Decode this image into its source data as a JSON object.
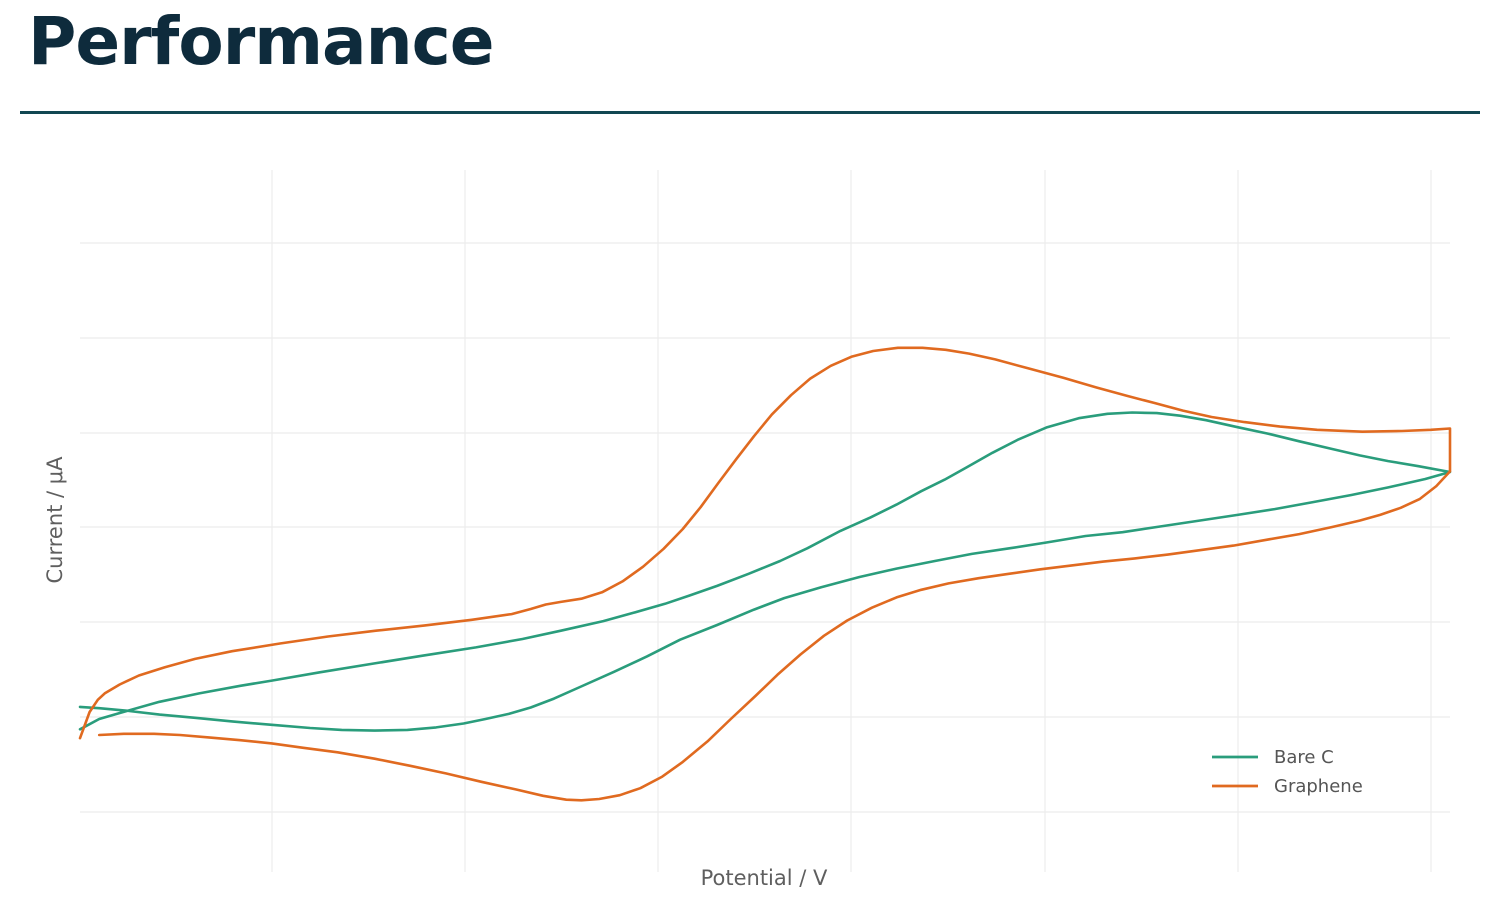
{
  "page": {
    "title": "Performance"
  },
  "chart_data": {
    "type": "line",
    "title": "",
    "xlabel": "Potential / V",
    "ylabel": "Current / μA",
    "xlim": [
      0,
      100
    ],
    "ylim": [
      0,
      100
    ],
    "grid": true,
    "tick_labels_shown": false,
    "legend_position": "bottom-right",
    "series": [
      {
        "name": "Bare C",
        "color": "#2a9d7c",
        "points": [
          [
            0,
            17.3
          ],
          [
            1.4,
            18.9
          ],
          [
            3.0,
            19.9
          ],
          [
            5.8,
            21.6
          ],
          [
            8.7,
            22.9
          ],
          [
            11.7,
            24.1
          ],
          [
            14.0,
            24.9
          ],
          [
            17.5,
            26.2
          ],
          [
            21.5,
            27.6
          ],
          [
            25.0,
            28.8
          ],
          [
            28.9,
            30.1
          ],
          [
            32.3,
            31.4
          ],
          [
            35.1,
            32.7
          ],
          [
            38.2,
            34.2
          ],
          [
            40.4,
            35.5
          ],
          [
            42.7,
            36.9
          ],
          [
            44.5,
            38.2
          ],
          [
            46.5,
            39.7
          ],
          [
            48.8,
            41.6
          ],
          [
            51.1,
            43.6
          ],
          [
            53.1,
            45.6
          ],
          [
            55.5,
            48.3
          ],
          [
            57.7,
            50.4
          ],
          [
            59.6,
            52.4
          ],
          [
            61.4,
            54.5
          ],
          [
            63.1,
            56.3
          ],
          [
            64.7,
            58.2
          ],
          [
            66.6,
            60.5
          ],
          [
            68.5,
            62.6
          ],
          [
            70.6,
            64.5
          ],
          [
            72.9,
            65.9
          ],
          [
            75.0,
            66.6
          ],
          [
            76.8,
            66.8
          ],
          [
            78.6,
            66.7
          ],
          [
            80.3,
            66.3
          ],
          [
            82.2,
            65.6
          ],
          [
            84.5,
            64.5
          ],
          [
            86.7,
            63.5
          ],
          [
            89.0,
            62.3
          ],
          [
            91.4,
            61.1
          ],
          [
            93.4,
            60.1
          ],
          [
            95.5,
            59.2
          ],
          [
            97.7,
            58.4
          ],
          [
            100,
            57.5
          ],
          [
            98.2,
            56.4
          ],
          [
            95.5,
            55.1
          ],
          [
            92.8,
            53.9
          ],
          [
            90.0,
            52.8
          ],
          [
            87.2,
            51.7
          ],
          [
            84.5,
            50.8
          ],
          [
            81.7,
            49.9
          ],
          [
            78.9,
            49.0
          ],
          [
            76.1,
            48.1
          ],
          [
            73.4,
            47.5
          ],
          [
            70.6,
            46.5
          ],
          [
            67.9,
            45.6
          ],
          [
            65.1,
            44.7
          ],
          [
            62.4,
            43.6
          ],
          [
            59.6,
            42.4
          ],
          [
            56.9,
            41.1
          ],
          [
            54.1,
            39.5
          ],
          [
            51.4,
            37.8
          ],
          [
            49.2,
            36.0
          ],
          [
            46.5,
            33.6
          ],
          [
            43.8,
            31.3
          ],
          [
            41.4,
            28.7
          ],
          [
            39.0,
            26.3
          ],
          [
            36.5,
            23.9
          ],
          [
            34.6,
            22.1
          ],
          [
            32.9,
            20.7
          ],
          [
            31.3,
            19.7
          ],
          [
            29.6,
            18.9
          ],
          [
            28.0,
            18.2
          ],
          [
            26.0,
            17.6
          ],
          [
            23.9,
            17.2
          ],
          [
            21.5,
            17.1
          ],
          [
            19.1,
            17.2
          ],
          [
            16.8,
            17.5
          ],
          [
            14.0,
            18.0
          ],
          [
            11.2,
            18.5
          ],
          [
            8.4,
            19.1
          ],
          [
            5.8,
            19.6
          ],
          [
            3.4,
            20.2
          ],
          [
            1.4,
            20.6
          ],
          [
            0,
            20.8
          ]
        ]
      },
      {
        "name": "Graphene",
        "color": "#e06a20",
        "points": [
          [
            1.4,
            16.4
          ],
          [
            3.2,
            16.6
          ],
          [
            5.4,
            16.6
          ],
          [
            7.3,
            16.4
          ],
          [
            9.5,
            16.0
          ],
          [
            11.7,
            15.6
          ],
          [
            14.0,
            15.1
          ],
          [
            16.3,
            14.4
          ],
          [
            18.8,
            13.7
          ],
          [
            21.5,
            12.7
          ],
          [
            24.1,
            11.6
          ],
          [
            26.7,
            10.4
          ],
          [
            29.3,
            9.1
          ],
          [
            31.8,
            7.9
          ],
          [
            33.8,
            6.9
          ],
          [
            35.5,
            6.3
          ],
          [
            36.6,
            6.2
          ],
          [
            37.9,
            6.4
          ],
          [
            39.4,
            7.0
          ],
          [
            40.9,
            8.1
          ],
          [
            42.5,
            9.9
          ],
          [
            44.0,
            12.2
          ],
          [
            45.8,
            15.4
          ],
          [
            47.5,
            18.9
          ],
          [
            49.3,
            22.5
          ],
          [
            50.9,
            25.8
          ],
          [
            52.6,
            29.0
          ],
          [
            54.3,
            31.9
          ],
          [
            56.0,
            34.3
          ],
          [
            57.8,
            36.3
          ],
          [
            59.6,
            37.9
          ],
          [
            61.4,
            39.1
          ],
          [
            63.4,
            40.1
          ],
          [
            65.6,
            40.9
          ],
          [
            67.8,
            41.6
          ],
          [
            70.1,
            42.3
          ],
          [
            72.4,
            42.9
          ],
          [
            74.7,
            43.5
          ],
          [
            77.0,
            44.0
          ],
          [
            79.4,
            44.6
          ],
          [
            81.8,
            45.3
          ],
          [
            84.2,
            46.0
          ],
          [
            86.6,
            46.9
          ],
          [
            89.0,
            47.8
          ],
          [
            91.4,
            48.9
          ],
          [
            93.4,
            49.9
          ],
          [
            94.9,
            50.8
          ],
          [
            96.4,
            51.9
          ],
          [
            97.8,
            53.3
          ],
          [
            99.0,
            55.3
          ],
          [
            100,
            57.6
          ],
          [
            100,
            64.3
          ],
          [
            98.6,
            64.1
          ],
          [
            96.5,
            63.9
          ],
          [
            93.6,
            63.8
          ],
          [
            90.3,
            64.1
          ],
          [
            87.6,
            64.6
          ],
          [
            85.0,
            65.3
          ],
          [
            82.6,
            66.1
          ],
          [
            80.5,
            67.1
          ],
          [
            78.4,
            68.3
          ],
          [
            76.4,
            69.4
          ],
          [
            74.2,
            70.7
          ],
          [
            71.8,
            72.2
          ],
          [
            69.2,
            73.7
          ],
          [
            66.8,
            75.1
          ],
          [
            64.9,
            76.0
          ],
          [
            63.2,
            76.6
          ],
          [
            61.5,
            76.9
          ],
          [
            59.7,
            76.9
          ],
          [
            57.9,
            76.4
          ],
          [
            56.3,
            75.5
          ],
          [
            54.8,
            74.1
          ],
          [
            53.3,
            72.1
          ],
          [
            51.9,
            69.5
          ],
          [
            50.5,
            66.5
          ],
          [
            49.2,
            63.1
          ],
          [
            47.9,
            59.5
          ],
          [
            46.6,
            55.8
          ],
          [
            45.3,
            52.0
          ],
          [
            44.0,
            48.6
          ],
          [
            42.6,
            45.5
          ],
          [
            41.1,
            42.7
          ],
          [
            39.6,
            40.4
          ],
          [
            38.1,
            38.7
          ],
          [
            36.6,
            37.7
          ],
          [
            35.1,
            37.2
          ],
          [
            34.0,
            36.8
          ],
          [
            32.9,
            36.1
          ],
          [
            31.5,
            35.3
          ],
          [
            28.6,
            34.4
          ],
          [
            25.1,
            33.5
          ],
          [
            21.6,
            32.7
          ],
          [
            18.1,
            31.8
          ],
          [
            14.6,
            30.7
          ],
          [
            11.1,
            29.5
          ],
          [
            8.4,
            28.3
          ],
          [
            6.2,
            27.0
          ],
          [
            4.3,
            25.7
          ],
          [
            2.9,
            24.3
          ],
          [
            1.8,
            22.9
          ],
          [
            1.3,
            21.9
          ],
          [
            0.7,
            20.0
          ],
          [
            0,
            15.9
          ]
        ]
      }
    ]
  }
}
